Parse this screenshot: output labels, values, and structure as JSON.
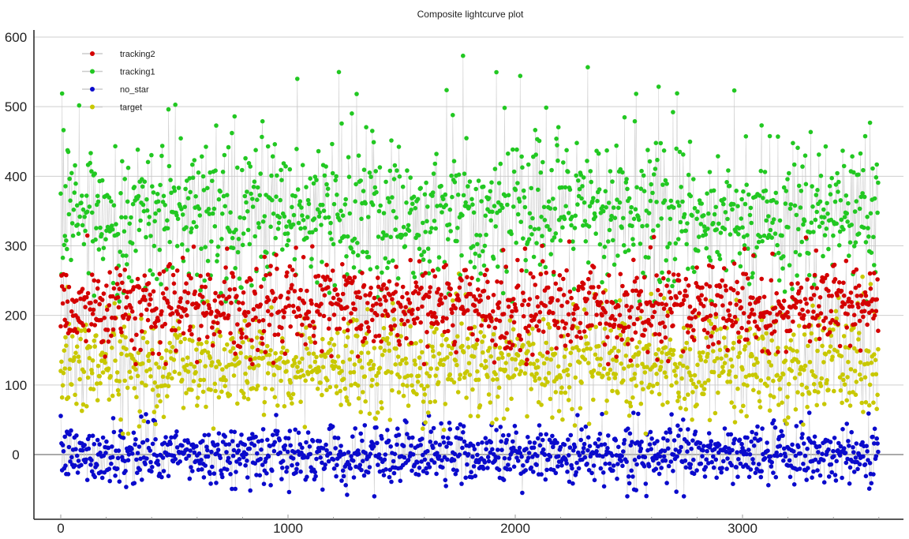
{
  "chart_data": {
    "type": "scatter",
    "title": "Composite lightcurve plot",
    "xlabel": "",
    "ylabel": "",
    "xlim": [
      -120,
      3700
    ],
    "ylim": [
      -93,
      608
    ],
    "xticks": [
      0,
      1000,
      2000,
      3000
    ],
    "yticks": [
      0,
      100,
      200,
      300,
      400,
      500,
      600
    ],
    "grid": "horizontal",
    "legend_position": "top-left",
    "connect_points_color": "#c8c8c8",
    "n_points": 3600,
    "series": [
      {
        "name": "no_star",
        "color": "#0a0acc",
        "mean": 0,
        "std": 20,
        "min": -60,
        "max": 60
      },
      {
        "name": "target",
        "color": "#c8c800",
        "mean": 130,
        "std": 38,
        "min": 30,
        "max": 260
      },
      {
        "name": "tracking1",
        "color": "#22c822",
        "mean": 345,
        "std": 55,
        "min": 220,
        "max": 580
      },
      {
        "name": "tracking2",
        "color": "#d40000",
        "mean": 210,
        "std": 30,
        "min": 130,
        "max": 320
      }
    ],
    "legend_order": [
      "tracking2",
      "tracking1",
      "no_star",
      "target"
    ]
  }
}
